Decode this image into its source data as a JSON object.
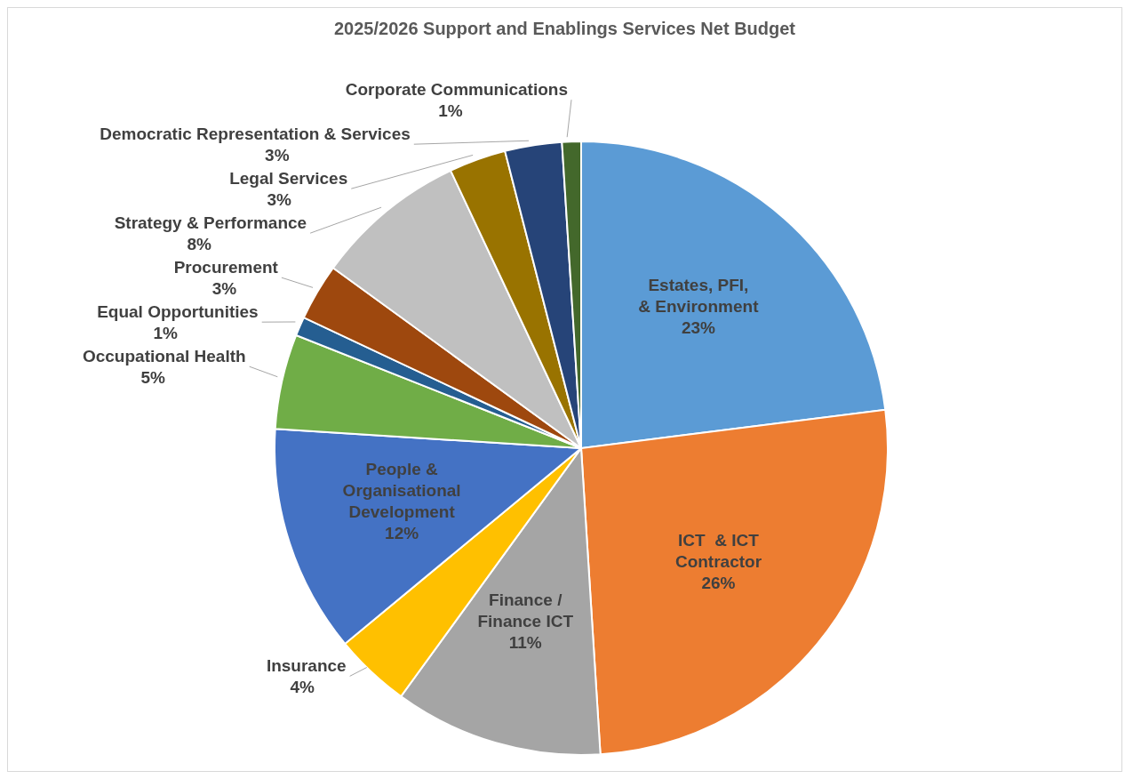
{
  "chart_data": {
    "type": "pie",
    "title": "2025/2026 Support and Enablings Services Net Budget",
    "categories": [
      "Estates, PFI, & Environment",
      "ICT  & ICT Contractor",
      "Finance / Finance ICT",
      "Insurance",
      "People & Organisational Development",
      "Occupational Health",
      "Equal Opportunities",
      "Procurement",
      "Strategy & Performance",
      "Legal Services",
      "Democratic Representation & Services",
      "Corporate Communications"
    ],
    "values": [
      23,
      26,
      11,
      4,
      12,
      5,
      1,
      3,
      8,
      3,
      3,
      1
    ],
    "value_labels": [
      "23%",
      "26%",
      "11%",
      "4%",
      "12%",
      "5%",
      "1%",
      "3%",
      "8%",
      "3%",
      "3%",
      "1%"
    ],
    "colors": [
      "#5b9bd5",
      "#ed7d31",
      "#a5a5a5",
      "#ffc000",
      "#4472c4",
      "#70ad47",
      "#255e91",
      "#9e480e",
      "#c0c0c0",
      "#997300",
      "#264478",
      "#43682b"
    ]
  }
}
